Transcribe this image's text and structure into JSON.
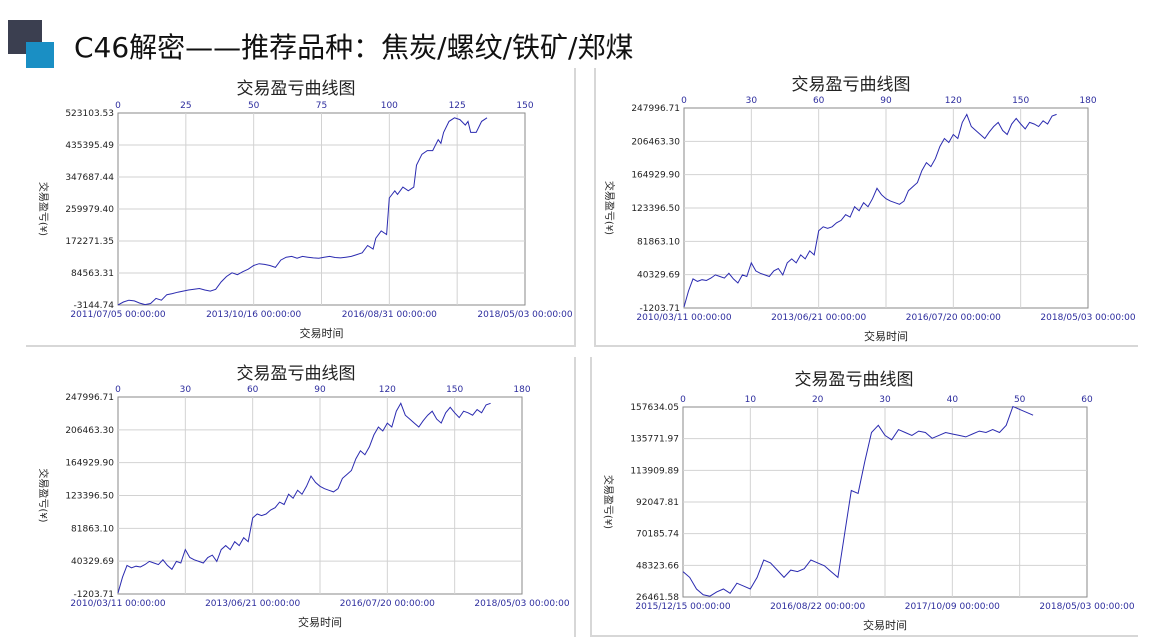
{
  "slide": {
    "title": "C46解密——推荐品种：焦炭/螺纹/铁矿/郑煤"
  },
  "chart_data": [
    {
      "type": "line",
      "title": "交易盈亏曲线图",
      "xlabel": "交易时间",
      "ylabel": "交易盈亏(¥)",
      "y_ticks": [
        "523103.53",
        "435395.49",
        "347687.44",
        "259979.40",
        "172271.35",
        "84563.31",
        "-3144.74"
      ],
      "ylim": [
        -3144.74,
        523103.53
      ],
      "top_ticks": [
        "0",
        "25",
        "50",
        "75",
        "100",
        "125",
        "150"
      ],
      "top_range": [
        0,
        150
      ],
      "bottom_ticks": [
        "2011/07/05 00:00:00",
        "2013/10/16 00:00:00",
        "2016/08/31 00:00:00",
        "2018/05/03 00:00:00"
      ],
      "grid": true,
      "color": "#2b2bb0",
      "series": [
        {
          "x": [
            0,
            2,
            4,
            6,
            8,
            10,
            12,
            14,
            16,
            18,
            20,
            22,
            24,
            26,
            28,
            30,
            32,
            34,
            36,
            38,
            40,
            42,
            44,
            46,
            48,
            50,
            52,
            54,
            56,
            58,
            60,
            62,
            64,
            66,
            68,
            70,
            72,
            74,
            76,
            78,
            80,
            82,
            84,
            86,
            88,
            90,
            92,
            94,
            95,
            97,
            99,
            100,
            102,
            103,
            105,
            107,
            109,
            110,
            112,
            114,
            116,
            118,
            119,
            120,
            122,
            124,
            126,
            128,
            129,
            130,
            132,
            134,
            136
          ],
          "y": [
            -3000,
            5000,
            10000,
            8000,
            2000,
            -2000,
            1000,
            15000,
            10000,
            25000,
            28000,
            32000,
            35000,
            38000,
            40000,
            42000,
            38000,
            35000,
            40000,
            60000,
            75000,
            85000,
            80000,
            88000,
            95000,
            105000,
            110000,
            108000,
            105000,
            100000,
            120000,
            128000,
            130000,
            125000,
            130000,
            128000,
            126000,
            125000,
            128000,
            130000,
            127000,
            126000,
            128000,
            130000,
            135000,
            140000,
            160000,
            150000,
            180000,
            200000,
            190000,
            290000,
            310000,
            300000,
            320000,
            310000,
            320000,
            380000,
            410000,
            420000,
            420000,
            450000,
            440000,
            470000,
            500000,
            510000,
            505000,
            490000,
            500000,
            470000,
            470000,
            500000,
            510000
          ]
        }
      ]
    },
    {
      "type": "line",
      "title": "交易盈亏曲线图",
      "xlabel": "交易时间",
      "ylabel": "交易盈亏(¥)",
      "y_ticks": [
        "247996.71",
        "206463.30",
        "164929.90",
        "123396.50",
        "81863.10",
        "40329.69",
        "-1203.71"
      ],
      "ylim": [
        -1203.71,
        247996.71
      ],
      "top_ticks": [
        "0",
        "30",
        "60",
        "90",
        "120",
        "150",
        "180"
      ],
      "top_range": [
        0,
        180
      ],
      "bottom_ticks": [
        "2010/03/11 00:00:00",
        "2013/06/21 00:00:00",
        "2016/07/20 00:00:00",
        "2018/05/03 00:00:00"
      ],
      "grid": true,
      "color": "#2b2bb0",
      "series": [
        {
          "x": [
            0,
            2,
            4,
            6,
            8,
            10,
            12,
            14,
            16,
            18,
            20,
            22,
            24,
            26,
            28,
            30,
            32,
            34,
            36,
            38,
            40,
            42,
            44,
            46,
            48,
            50,
            52,
            54,
            56,
            58,
            60,
            62,
            64,
            66,
            68,
            70,
            72,
            74,
            76,
            78,
            80,
            82,
            84,
            86,
            88,
            90,
            92,
            94,
            96,
            98,
            100,
            102,
            104,
            106,
            108,
            110,
            112,
            114,
            116,
            118,
            120,
            122,
            124,
            126,
            128,
            130,
            132,
            134,
            136,
            138,
            140,
            142,
            144,
            146,
            148,
            150,
            152,
            154,
            156,
            158,
            160,
            162,
            164,
            166
          ],
          "y": [
            0,
            20000,
            35000,
            32000,
            34000,
            33000,
            36000,
            40000,
            38000,
            36000,
            42000,
            35000,
            30000,
            40000,
            38000,
            55000,
            45000,
            42000,
            40000,
            38000,
            45000,
            48000,
            40000,
            55000,
            60000,
            55000,
            65000,
            60000,
            70000,
            65000,
            95000,
            100000,
            98000,
            100000,
            105000,
            108000,
            115000,
            112000,
            125000,
            120000,
            130000,
            125000,
            135000,
            148000,
            140000,
            135000,
            132000,
            130000,
            128000,
            132000,
            145000,
            150000,
            155000,
            170000,
            180000,
            175000,
            185000,
            200000,
            210000,
            205000,
            215000,
            210000,
            230000,
            240000,
            225000,
            220000,
            215000,
            210000,
            218000,
            225000,
            230000,
            220000,
            215000,
            228000,
            235000,
            228000,
            222000,
            230000,
            228000,
            225000,
            232000,
            228000,
            238000,
            240000
          ]
        }
      ]
    },
    {
      "type": "line",
      "title": "交易盈亏曲线图",
      "xlabel": "交易时间",
      "ylabel": "交易盈亏(¥)",
      "y_ticks": [
        "247996.71",
        "206463.30",
        "164929.90",
        "123396.50",
        "81863.10",
        "40329.69",
        "-1203.71"
      ],
      "ylim": [
        -1203.71,
        247996.71
      ],
      "top_ticks": [
        "0",
        "30",
        "60",
        "90",
        "120",
        "150",
        "180"
      ],
      "top_range": [
        0,
        180
      ],
      "bottom_ticks": [
        "2010/03/11 00:00:00",
        "2013/06/21 00:00:00",
        "2016/07/20 00:00:00",
        "2018/05/03 00:00:00"
      ],
      "grid": true,
      "color": "#2b2bb0",
      "series": [
        {
          "x": [
            0,
            2,
            4,
            6,
            8,
            10,
            12,
            14,
            16,
            18,
            20,
            22,
            24,
            26,
            28,
            30,
            32,
            34,
            36,
            38,
            40,
            42,
            44,
            46,
            48,
            50,
            52,
            54,
            56,
            58,
            60,
            62,
            64,
            66,
            68,
            70,
            72,
            74,
            76,
            78,
            80,
            82,
            84,
            86,
            88,
            90,
            92,
            94,
            96,
            98,
            100,
            102,
            104,
            106,
            108,
            110,
            112,
            114,
            116,
            118,
            120,
            122,
            124,
            126,
            128,
            130,
            132,
            134,
            136,
            138,
            140,
            142,
            144,
            146,
            148,
            150,
            152,
            154,
            156,
            158,
            160,
            162,
            164,
            166
          ],
          "y": [
            0,
            20000,
            35000,
            32000,
            34000,
            33000,
            36000,
            40000,
            38000,
            36000,
            42000,
            35000,
            30000,
            40000,
            38000,
            55000,
            45000,
            42000,
            40000,
            38000,
            45000,
            48000,
            40000,
            55000,
            60000,
            55000,
            65000,
            60000,
            70000,
            65000,
            95000,
            100000,
            98000,
            100000,
            105000,
            108000,
            115000,
            112000,
            125000,
            120000,
            130000,
            125000,
            135000,
            148000,
            140000,
            135000,
            132000,
            130000,
            128000,
            132000,
            145000,
            150000,
            155000,
            170000,
            180000,
            175000,
            185000,
            200000,
            210000,
            205000,
            215000,
            210000,
            230000,
            240000,
            225000,
            220000,
            215000,
            210000,
            218000,
            225000,
            230000,
            220000,
            215000,
            228000,
            235000,
            228000,
            222000,
            230000,
            228000,
            225000,
            232000,
            228000,
            238000,
            240000
          ]
        }
      ]
    },
    {
      "type": "line",
      "title": "交易盈亏曲线图",
      "xlabel": "交易时间",
      "ylabel": "交易盈亏(¥)",
      "y_ticks": [
        "157634.05",
        "135771.97",
        "113909.89",
        "92047.81",
        "70185.74",
        "48323.66",
        "26461.58"
      ],
      "ylim": [
        26461.58,
        157634.05
      ],
      "top_ticks": [
        "0",
        "10",
        "20",
        "30",
        "40",
        "50",
        "60"
      ],
      "top_range": [
        0,
        60
      ],
      "bottom_ticks": [
        "2015/12/15 00:00:00",
        "2016/08/22 00:00:00",
        "2017/10/09 00:00:00",
        "2018/05/03 00:00:00"
      ],
      "grid": true,
      "color": "#2b2bb0",
      "series": [
        {
          "x": [
            0,
            1,
            2,
            3,
            4,
            5,
            6,
            7,
            8,
            9,
            10,
            11,
            12,
            13,
            14,
            15,
            16,
            17,
            18,
            19,
            20,
            21,
            22,
            23,
            24,
            25,
            26,
            27,
            28,
            29,
            30,
            31,
            32,
            33,
            34,
            35,
            36,
            37,
            38,
            39,
            40,
            41,
            42,
            43,
            44,
            45,
            46,
            47,
            48,
            49,
            50,
            51,
            52
          ],
          "y": [
            44000,
            40000,
            32000,
            28000,
            27000,
            30000,
            32000,
            29000,
            36000,
            34000,
            32000,
            40000,
            52000,
            50000,
            45000,
            40000,
            45000,
            44000,
            46000,
            52000,
            50000,
            48000,
            44000,
            40000,
            70000,
            100000,
            98000,
            120000,
            140000,
            145000,
            138000,
            135000,
            142000,
            140000,
            138000,
            141000,
            140000,
            136000,
            138000,
            140000,
            139000,
            138000,
            137000,
            139000,
            141000,
            140000,
            142000,
            140000,
            145000,
            158000,
            156000,
            154000,
            152000
          ]
        }
      ]
    }
  ]
}
